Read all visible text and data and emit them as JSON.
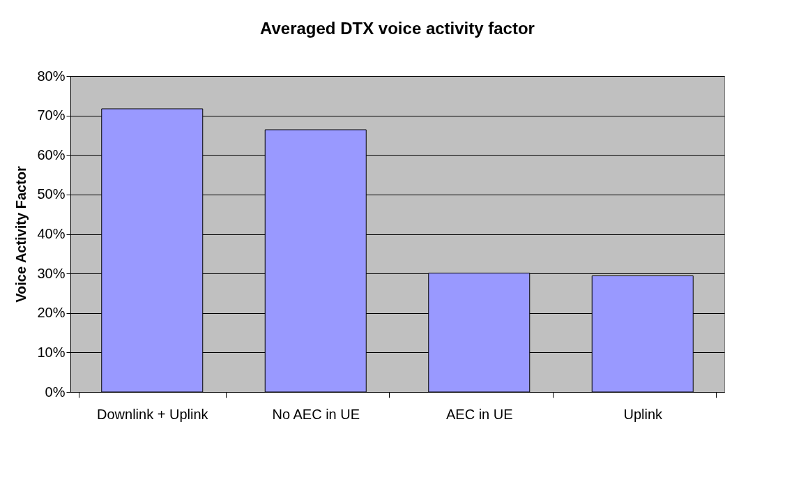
{
  "chart_data": {
    "type": "bar",
    "title": "Averaged DTX voice activity factor",
    "ylabel": "Voice Activity Factor",
    "categories": [
      "Downlink + Uplink",
      "No AEC in UE",
      "AEC in UE",
      "Uplink"
    ],
    "values": [
      71.7,
      66.4,
      30.1,
      29.4
    ],
    "color": "#9999ff",
    "ylim": [
      0,
      80
    ],
    "yticks": [
      {
        "value": 0,
        "label": "0%"
      },
      {
        "value": 10,
        "label": "10%"
      },
      {
        "value": 20,
        "label": "20%"
      },
      {
        "value": 30,
        "label": "30%"
      },
      {
        "value": 40,
        "label": "40%"
      },
      {
        "value": 50,
        "label": "50%"
      },
      {
        "value": 60,
        "label": "60%"
      },
      {
        "value": 70,
        "label": "70%"
      },
      {
        "value": 80,
        "label": "80%"
      }
    ],
    "grid": "y"
  }
}
